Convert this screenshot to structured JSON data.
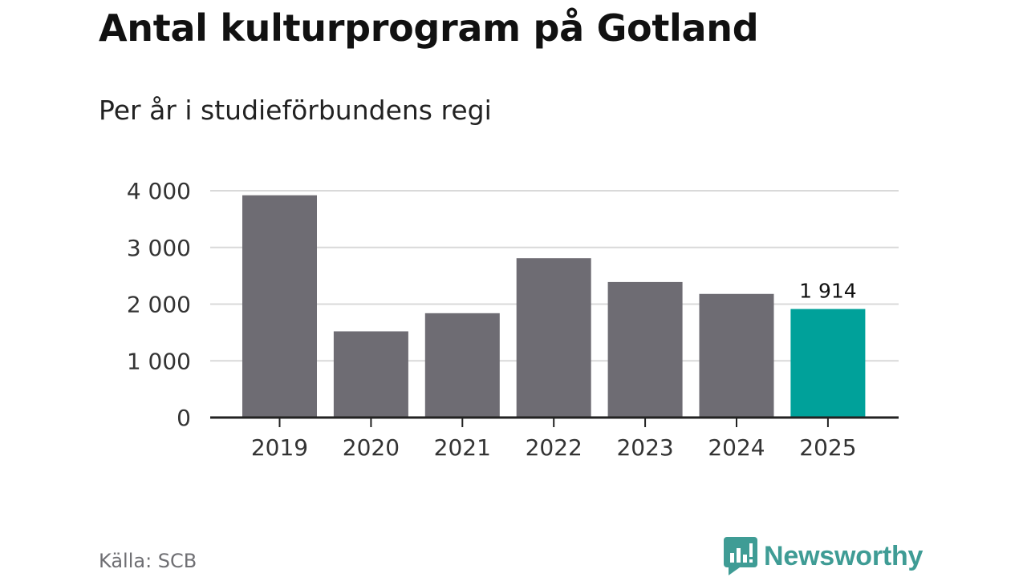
{
  "title": "Antal kulturprogram på Gotland",
  "subtitle": "Per år i studieförbundens regi",
  "source": "Källa: SCB",
  "brand": "Newsworthy",
  "colors": {
    "bar": "#6e6c73",
    "highlight": "#00a19a",
    "grid": "#d9d9d9",
    "axis": "#222222",
    "brand": "#3f9c95"
  },
  "chart_data": {
    "type": "bar",
    "categories": [
      "2019",
      "2020",
      "2021",
      "2022",
      "2023",
      "2024",
      "2025"
    ],
    "values": [
      3920,
      1520,
      1840,
      2810,
      2390,
      2180,
      1914
    ],
    "ylim": [
      0,
      4000
    ],
    "yticks": [
      0,
      1000,
      2000,
      3000,
      4000
    ],
    "ytick_labels": [
      "0",
      "1 000",
      "2 000",
      "3 000",
      "4 000"
    ],
    "highlight_index": 6,
    "data_labels": [
      {
        "index": 6,
        "text": "1 914"
      }
    ],
    "xlabel": "",
    "ylabel": ""
  }
}
